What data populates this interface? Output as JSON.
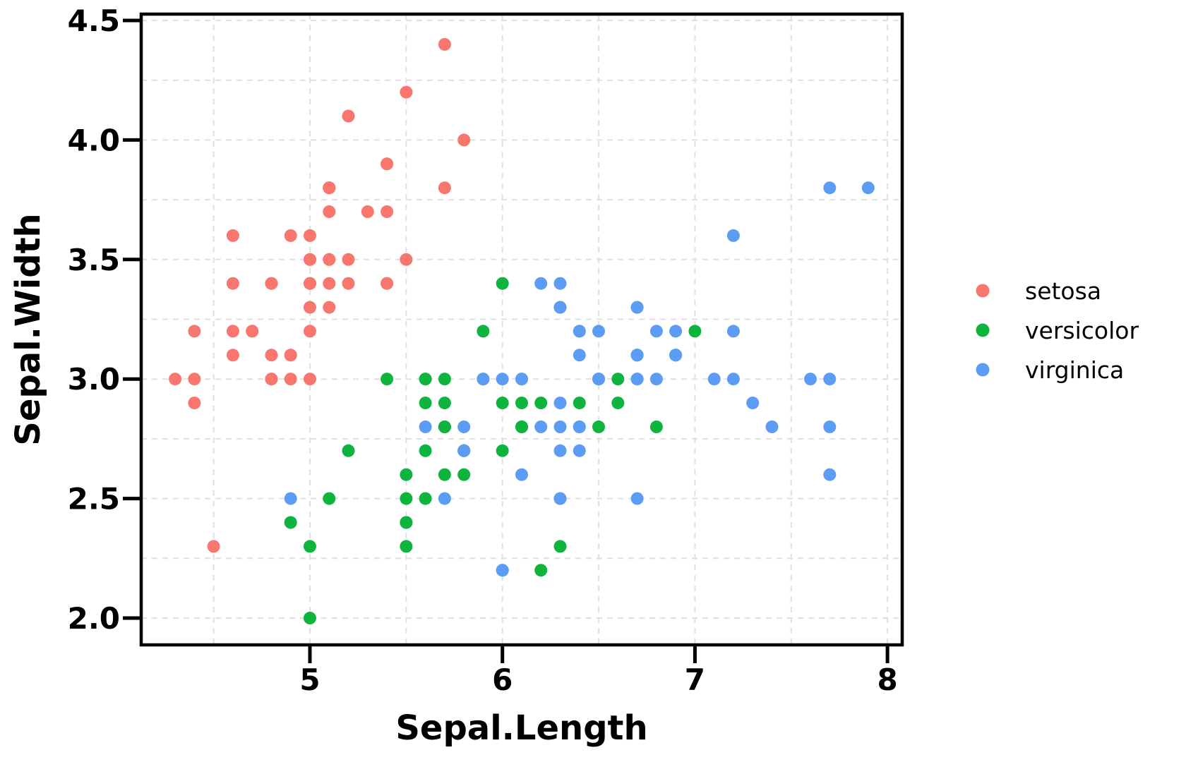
{
  "figure": {
    "background": "#ffffff"
  },
  "chart_data": {
    "type": "scatter",
    "title": "",
    "xlabel": "Sepal.Length",
    "ylabel": "Sepal.Width",
    "xlim": [
      4.12,
      8.08
    ],
    "ylim": [
      1.88,
      4.53
    ],
    "grid": true,
    "grid_color": "#e0e0e0",
    "axis_color": "#000000",
    "legend_position": "right",
    "x_ticks": [
      {
        "v": 5,
        "label": "5"
      },
      {
        "v": 6,
        "label": "6"
      },
      {
        "v": 7,
        "label": "7"
      },
      {
        "v": 8,
        "label": "8"
      }
    ],
    "y_ticks": [
      {
        "v": 2.0,
        "label": "2.0"
      },
      {
        "v": 2.5,
        "label": "2.5"
      },
      {
        "v": 3.0,
        "label": "3.0"
      },
      {
        "v": 3.5,
        "label": "3.5"
      },
      {
        "v": 4.0,
        "label": "4.0"
      },
      {
        "v": 4.5,
        "label": "4.5"
      }
    ],
    "x_minor": [
      4.5,
      5.5,
      6.5,
      7.5
    ],
    "y_minor": [
      2.25,
      2.75,
      3.25,
      3.75,
      4.25
    ],
    "series": [
      {
        "name": "setosa",
        "color": "#F8766D",
        "points": [
          [
            5.1,
            3.5
          ],
          [
            4.9,
            3.0
          ],
          [
            4.7,
            3.2
          ],
          [
            4.6,
            3.1
          ],
          [
            5.0,
            3.6
          ],
          [
            5.4,
            3.9
          ],
          [
            4.6,
            3.4
          ],
          [
            5.0,
            3.4
          ],
          [
            4.4,
            2.9
          ],
          [
            4.9,
            3.1
          ],
          [
            5.4,
            3.7
          ],
          [
            4.8,
            3.4
          ],
          [
            4.8,
            3.0
          ],
          [
            4.3,
            3.0
          ],
          [
            5.8,
            4.0
          ],
          [
            5.7,
            4.4
          ],
          [
            5.4,
            3.9
          ],
          [
            5.1,
            3.5
          ],
          [
            5.7,
            3.8
          ],
          [
            5.1,
            3.8
          ],
          [
            5.4,
            3.4
          ],
          [
            5.1,
            3.7
          ],
          [
            4.6,
            3.6
          ],
          [
            5.1,
            3.3
          ],
          [
            4.8,
            3.4
          ],
          [
            5.0,
            3.0
          ],
          [
            5.0,
            3.4
          ],
          [
            5.2,
            3.5
          ],
          [
            5.2,
            3.4
          ],
          [
            4.7,
            3.2
          ],
          [
            4.8,
            3.1
          ],
          [
            5.4,
            3.4
          ],
          [
            5.2,
            4.1
          ],
          [
            5.5,
            4.2
          ],
          [
            4.9,
            3.1
          ],
          [
            5.0,
            3.2
          ],
          [
            5.5,
            3.5
          ],
          [
            4.9,
            3.6
          ],
          [
            4.4,
            3.0
          ],
          [
            5.1,
            3.4
          ],
          [
            5.0,
            3.5
          ],
          [
            4.5,
            2.3
          ],
          [
            4.4,
            3.2
          ],
          [
            5.0,
            3.5
          ],
          [
            5.1,
            3.8
          ],
          [
            4.8,
            3.0
          ],
          [
            5.1,
            3.8
          ],
          [
            4.6,
            3.2
          ],
          [
            5.3,
            3.7
          ],
          [
            5.0,
            3.3
          ]
        ]
      },
      {
        "name": "versicolor",
        "color": "#0EB43E",
        "points": [
          [
            7.0,
            3.2
          ],
          [
            6.4,
            3.2
          ],
          [
            6.9,
            3.1
          ],
          [
            5.5,
            2.3
          ],
          [
            6.5,
            2.8
          ],
          [
            5.7,
            2.8
          ],
          [
            6.3,
            3.3
          ],
          [
            4.9,
            2.4
          ],
          [
            6.6,
            2.9
          ],
          [
            5.2,
            2.7
          ],
          [
            5.0,
            2.0
          ],
          [
            5.9,
            3.0
          ],
          [
            6.0,
            2.2
          ],
          [
            6.1,
            2.9
          ],
          [
            5.6,
            2.9
          ],
          [
            6.7,
            3.1
          ],
          [
            5.6,
            3.0
          ],
          [
            5.8,
            2.7
          ],
          [
            6.2,
            2.2
          ],
          [
            5.6,
            2.5
          ],
          [
            5.9,
            3.2
          ],
          [
            6.1,
            2.8
          ],
          [
            6.3,
            2.5
          ],
          [
            6.1,
            2.8
          ],
          [
            6.4,
            2.9
          ],
          [
            6.6,
            3.0
          ],
          [
            6.8,
            2.8
          ],
          [
            6.7,
            3.0
          ],
          [
            6.0,
            2.9
          ],
          [
            5.7,
            2.6
          ],
          [
            5.5,
            2.4
          ],
          [
            5.5,
            2.4
          ],
          [
            5.8,
            2.7
          ],
          [
            6.0,
            2.7
          ],
          [
            5.4,
            3.0
          ],
          [
            6.0,
            3.4
          ],
          [
            6.7,
            3.1
          ],
          [
            6.3,
            2.3
          ],
          [
            5.6,
            3.0
          ],
          [
            5.5,
            2.5
          ],
          [
            5.5,
            2.6
          ],
          [
            6.1,
            3.0
          ],
          [
            5.8,
            2.6
          ],
          [
            5.0,
            2.3
          ],
          [
            5.6,
            2.7
          ],
          [
            5.7,
            3.0
          ],
          [
            5.7,
            2.9
          ],
          [
            6.2,
            2.9
          ],
          [
            5.1,
            2.5
          ],
          [
            5.7,
            2.8
          ]
        ]
      },
      {
        "name": "virginica",
        "color": "#5C9CF5",
        "points": [
          [
            6.3,
            3.3
          ],
          [
            5.8,
            2.7
          ],
          [
            7.1,
            3.0
          ],
          [
            6.3,
            2.9
          ],
          [
            6.5,
            3.0
          ],
          [
            7.6,
            3.0
          ],
          [
            4.9,
            2.5
          ],
          [
            7.3,
            2.9
          ],
          [
            6.7,
            2.5
          ],
          [
            7.2,
            3.6
          ],
          [
            6.5,
            3.2
          ],
          [
            6.4,
            2.7
          ],
          [
            6.8,
            3.0
          ],
          [
            5.7,
            2.5
          ],
          [
            5.8,
            2.8
          ],
          [
            6.4,
            3.2
          ],
          [
            6.5,
            3.0
          ],
          [
            7.7,
            3.8
          ],
          [
            7.7,
            2.6
          ],
          [
            6.0,
            2.2
          ],
          [
            6.9,
            3.2
          ],
          [
            5.6,
            2.8
          ],
          [
            7.7,
            2.8
          ],
          [
            6.3,
            2.7
          ],
          [
            6.7,
            3.3
          ],
          [
            7.2,
            3.2
          ],
          [
            6.2,
            2.8
          ],
          [
            6.1,
            3.0
          ],
          [
            6.4,
            2.8
          ],
          [
            7.2,
            3.0
          ],
          [
            7.4,
            2.8
          ],
          [
            7.9,
            3.8
          ],
          [
            6.4,
            2.8
          ],
          [
            6.3,
            2.8
          ],
          [
            6.1,
            2.6
          ],
          [
            7.7,
            3.0
          ],
          [
            6.3,
            3.4
          ],
          [
            6.4,
            3.1
          ],
          [
            6.0,
            3.0
          ],
          [
            6.9,
            3.1
          ],
          [
            6.7,
            3.1
          ],
          [
            6.9,
            3.1
          ],
          [
            5.8,
            2.7
          ],
          [
            6.8,
            3.2
          ],
          [
            6.7,
            3.3
          ],
          [
            6.7,
            3.0
          ],
          [
            6.3,
            2.5
          ],
          [
            6.5,
            3.0
          ],
          [
            6.2,
            3.4
          ],
          [
            5.9,
            3.0
          ]
        ]
      }
    ]
  }
}
